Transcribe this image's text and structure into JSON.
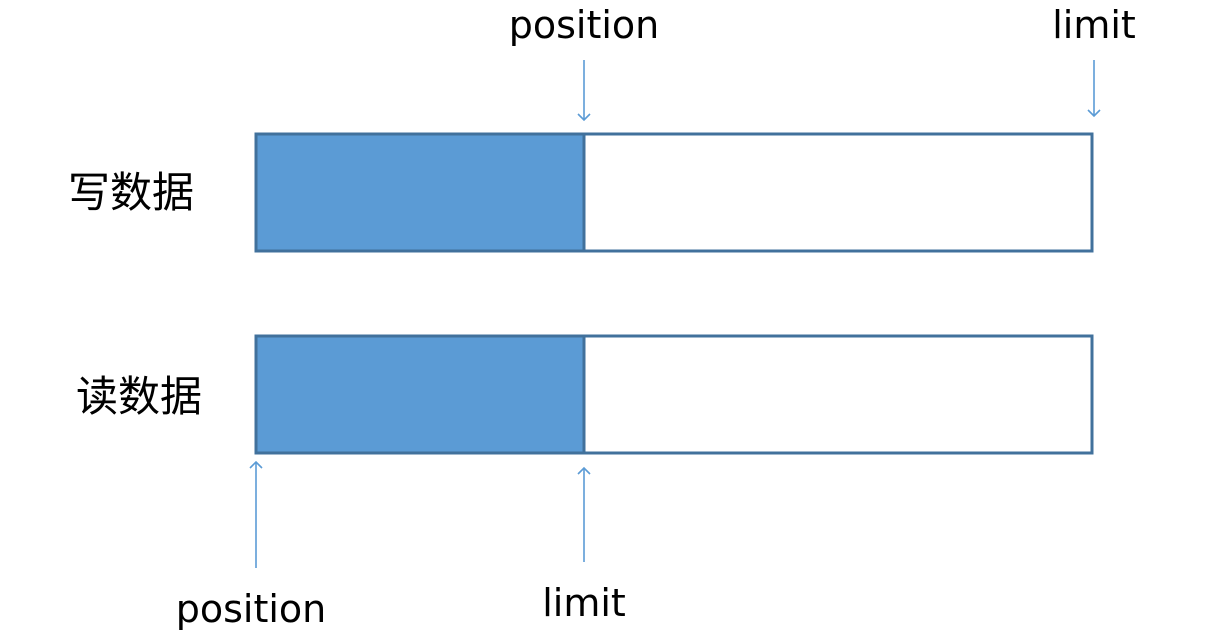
{
  "rows": [
    {
      "label": "写数据",
      "filled_fraction": 0.392,
      "markers": [
        {
          "label": "position",
          "placement": "above",
          "at_fraction": 0.392
        },
        {
          "label": "limit",
          "placement": "above",
          "at_fraction": 1.0
        }
      ]
    },
    {
      "label": "读数据",
      "filled_fraction": 0.392,
      "markers": [
        {
          "label": "position",
          "placement": "below",
          "at_fraction": 0.0
        },
        {
          "label": "limit",
          "placement": "below",
          "at_fraction": 0.392
        }
      ]
    }
  ],
  "colors": {
    "fill": "#5b9bd5",
    "border": "#41719c",
    "arrow": "#5b9bd5",
    "empty": "#ffffff"
  }
}
